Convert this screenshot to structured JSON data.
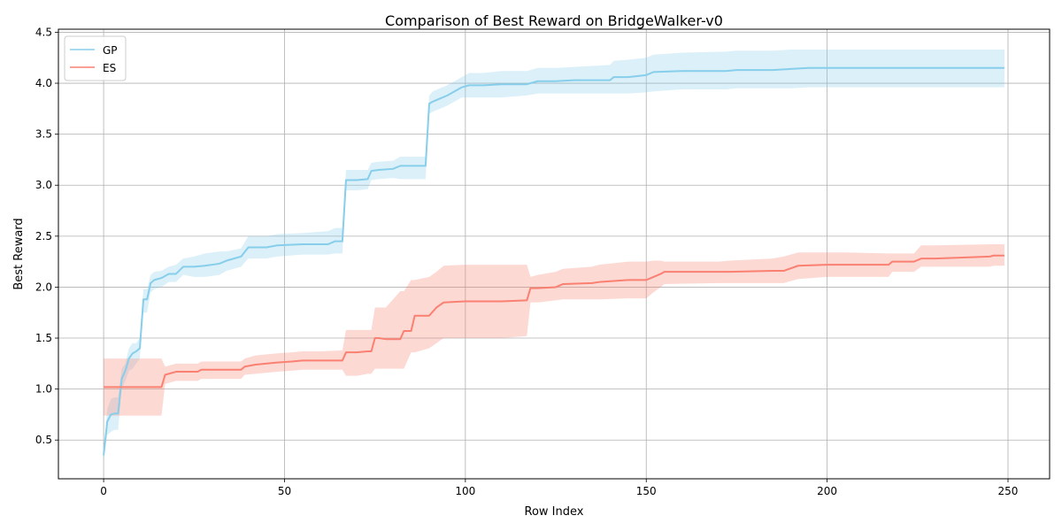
{
  "chart_data": {
    "type": "line",
    "title": "Comparison of Best Reward on BridgeWalker-v0",
    "xlabel": "Row Index",
    "ylabel": "Best Reward",
    "xlim": [
      -12.5,
      261.5
    ],
    "ylim": [
      0.12,
      4.53
    ],
    "xticks": [
      0,
      50,
      100,
      150,
      200,
      250
    ],
    "yticks": [
      0.5,
      1.0,
      1.5,
      2.0,
      2.5,
      3.0,
      3.5,
      4.0,
      4.5
    ],
    "ytick_labels": [
      "0.5",
      "1.0",
      "1.5",
      "2.0",
      "2.5",
      "3.0",
      "3.5",
      "4.0",
      "4.5"
    ],
    "grid": true,
    "legend_position": "top-left",
    "series": [
      {
        "name": "GP",
        "color": "#87ceeb",
        "band_color": "#87ceeb",
        "x": [
          0,
          1,
          2,
          3,
          4,
          5,
          6,
          7,
          8,
          9,
          10,
          11,
          12,
          13,
          14,
          16,
          18,
          20,
          22,
          25,
          28,
          32,
          34,
          38,
          40,
          45,
          48,
          55,
          62,
          64,
          66,
          67,
          70,
          73,
          74,
          76,
          80,
          82,
          86,
          89,
          90,
          91,
          93,
          95,
          97,
          99,
          101,
          105,
          110,
          117,
          120,
          125,
          130,
          135,
          140,
          141,
          145,
          150,
          152,
          160,
          172,
          175,
          185,
          190,
          195,
          200,
          210,
          249
        ],
        "y": [
          0.35,
          0.68,
          0.75,
          0.76,
          0.76,
          1.1,
          1.18,
          1.3,
          1.35,
          1.37,
          1.4,
          1.88,
          1.88,
          2.04,
          2.07,
          2.09,
          2.13,
          2.13,
          2.2,
          2.2,
          2.21,
          2.23,
          2.26,
          2.3,
          2.39,
          2.39,
          2.41,
          2.42,
          2.42,
          2.45,
          2.45,
          3.05,
          3.05,
          3.06,
          3.14,
          3.15,
          3.16,
          3.19,
          3.19,
          3.19,
          3.8,
          3.82,
          3.85,
          3.88,
          3.92,
          3.96,
          3.98,
          3.98,
          3.99,
          3.99,
          4.02,
          4.02,
          4.03,
          4.03,
          4.03,
          4.06,
          4.06,
          4.08,
          4.11,
          4.12,
          4.12,
          4.13,
          4.13,
          4.14,
          4.15,
          4.15,
          4.15,
          4.15
        ],
        "upper": [
          0.4,
          0.8,
          0.9,
          0.92,
          0.92,
          1.2,
          1.25,
          1.4,
          1.45,
          1.45,
          1.5,
          1.98,
          1.98,
          2.12,
          2.15,
          2.16,
          2.2,
          2.22,
          2.28,
          2.3,
          2.33,
          2.35,
          2.35,
          2.38,
          2.5,
          2.5,
          2.52,
          2.53,
          2.55,
          2.58,
          2.58,
          3.15,
          3.15,
          3.15,
          3.22,
          3.23,
          3.24,
          3.28,
          3.28,
          3.28,
          3.88,
          3.92,
          3.95,
          3.98,
          4.02,
          4.06,
          4.1,
          4.1,
          4.12,
          4.12,
          4.15,
          4.15,
          4.16,
          4.17,
          4.18,
          4.22,
          4.23,
          4.25,
          4.28,
          4.3,
          4.31,
          4.32,
          4.32,
          4.33,
          4.33,
          4.33,
          4.33,
          4.33
        ],
        "lower": [
          0.3,
          0.55,
          0.58,
          0.6,
          0.6,
          1.0,
          1.08,
          1.18,
          1.2,
          1.25,
          1.3,
          1.75,
          1.75,
          1.95,
          1.98,
          2.0,
          2.05,
          2.05,
          2.12,
          2.1,
          2.1,
          2.12,
          2.16,
          2.2,
          2.28,
          2.28,
          2.3,
          2.32,
          2.32,
          2.33,
          2.33,
          2.95,
          2.95,
          2.96,
          3.05,
          3.06,
          3.07,
          3.06,
          3.06,
          3.06,
          3.7,
          3.72,
          3.75,
          3.78,
          3.82,
          3.86,
          3.86,
          3.86,
          3.86,
          3.88,
          3.9,
          3.9,
          3.9,
          3.9,
          3.9,
          3.9,
          3.9,
          3.91,
          3.92,
          3.94,
          3.94,
          3.95,
          3.95,
          3.95,
          3.96,
          3.96,
          3.96,
          3.96
        ]
      },
      {
        "name": "ES",
        "color": "#fa8072",
        "band_color": "#fa8072",
        "x": [
          0,
          5,
          10,
          15,
          16,
          17,
          20,
          26,
          27,
          30,
          38,
          39,
          42,
          48,
          52,
          55,
          60,
          66,
          67,
          70,
          73,
          74,
          75,
          76,
          78,
          82,
          83,
          85,
          86,
          90,
          92,
          94,
          100,
          110,
          117,
          118,
          120,
          125,
          127,
          135,
          137,
          145,
          150,
          152,
          154,
          155,
          170,
          173,
          185,
          188,
          192,
          200,
          205,
          217,
          218,
          224,
          226,
          230,
          245,
          246,
          249
        ],
        "y": [
          1.02,
          1.02,
          1.02,
          1.02,
          1.02,
          1.14,
          1.17,
          1.17,
          1.19,
          1.19,
          1.19,
          1.22,
          1.24,
          1.26,
          1.27,
          1.28,
          1.28,
          1.28,
          1.36,
          1.36,
          1.37,
          1.37,
          1.5,
          1.5,
          1.49,
          1.49,
          1.57,
          1.57,
          1.72,
          1.72,
          1.8,
          1.85,
          1.86,
          1.86,
          1.87,
          1.99,
          1.99,
          2.0,
          2.03,
          2.04,
          2.05,
          2.07,
          2.07,
          2.1,
          2.13,
          2.15,
          2.15,
          2.15,
          2.16,
          2.16,
          2.21,
          2.22,
          2.22,
          2.22,
          2.25,
          2.25,
          2.28,
          2.28,
          2.3,
          2.31,
          2.31
        ],
        "upper": [
          1.3,
          1.3,
          1.3,
          1.3,
          1.3,
          1.22,
          1.25,
          1.25,
          1.27,
          1.27,
          1.27,
          1.3,
          1.33,
          1.35,
          1.36,
          1.37,
          1.37,
          1.38,
          1.58,
          1.58,
          1.58,
          1.58,
          1.8,
          1.8,
          1.8,
          1.96,
          1.96,
          2.07,
          2.07,
          2.1,
          2.15,
          2.21,
          2.22,
          2.22,
          2.22,
          2.1,
          2.12,
          2.15,
          2.18,
          2.2,
          2.22,
          2.25,
          2.25,
          2.26,
          2.26,
          2.25,
          2.25,
          2.26,
          2.28,
          2.3,
          2.34,
          2.34,
          2.34,
          2.33,
          2.33,
          2.33,
          2.41,
          2.41,
          2.42,
          2.42,
          2.42
        ],
        "lower": [
          0.74,
          0.74,
          0.74,
          0.74,
          0.74,
          1.05,
          1.08,
          1.08,
          1.1,
          1.1,
          1.1,
          1.14,
          1.15,
          1.17,
          1.18,
          1.19,
          1.19,
          1.19,
          1.13,
          1.13,
          1.15,
          1.15,
          1.2,
          1.2,
          1.2,
          1.2,
          1.2,
          1.36,
          1.36,
          1.4,
          1.45,
          1.5,
          1.5,
          1.5,
          1.52,
          1.85,
          1.85,
          1.87,
          1.88,
          1.88,
          1.88,
          1.89,
          1.89,
          1.95,
          2.0,
          2.03,
          2.04,
          2.04,
          2.04,
          2.04,
          2.08,
          2.1,
          2.1,
          2.1,
          2.15,
          2.15,
          2.2,
          2.2,
          2.2,
          2.21,
          2.21
        ]
      }
    ]
  }
}
